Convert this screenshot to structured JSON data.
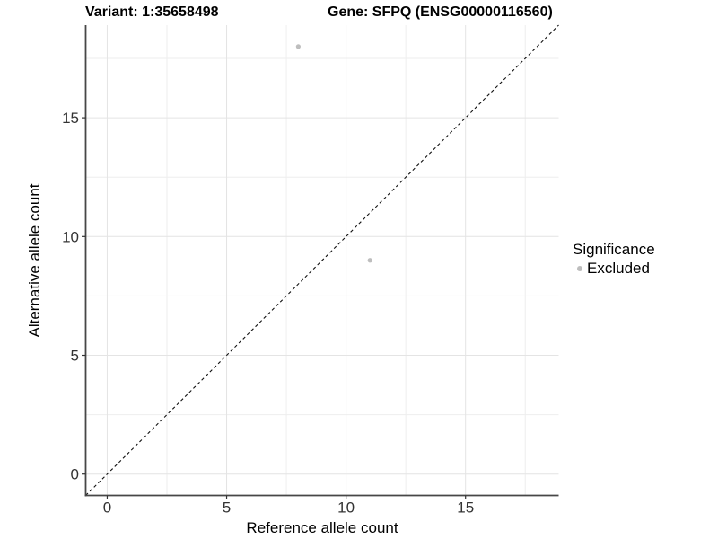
{
  "chart_data": {
    "type": "scatter",
    "title_left": "Variant: 1:35658498",
    "title_right": "Gene: SFPQ (ENSG00000116560)",
    "xlabel": "Reference allele count",
    "ylabel": "Alternative allele count",
    "xlim": [
      -0.9,
      18.9
    ],
    "ylim": [
      -0.9,
      18.9
    ],
    "xticks": [
      0,
      5,
      10,
      15
    ],
    "yticks": [
      0,
      5,
      10,
      15
    ],
    "xminor": [
      2.5,
      7.5,
      12.5,
      17.5
    ],
    "yminor": [
      2.5,
      7.5,
      12.5,
      17.5
    ],
    "grid": "major+minor",
    "identity_line": {
      "style": "dashed",
      "from": [
        -0.9,
        -0.9
      ],
      "to": [
        18.9,
        18.9
      ],
      "color": "#111111"
    },
    "series": [
      {
        "name": "Excluded",
        "marker": "circle",
        "color": "#bebebe",
        "points": [
          [
            8,
            18
          ],
          [
            11,
            9
          ]
        ]
      }
    ],
    "legend": {
      "title": "Significance",
      "position": "right",
      "entries": [
        {
          "label": "Excluded",
          "color": "#bdbdbd"
        }
      ]
    }
  },
  "colors": {
    "background": "#ffffff",
    "grid_major": "#e4e4e4",
    "grid_minor": "#eeeeee",
    "axis_line": "#474747",
    "tick_mark": "#333333",
    "tick_label": "#333333",
    "point": "#bebebe"
  }
}
